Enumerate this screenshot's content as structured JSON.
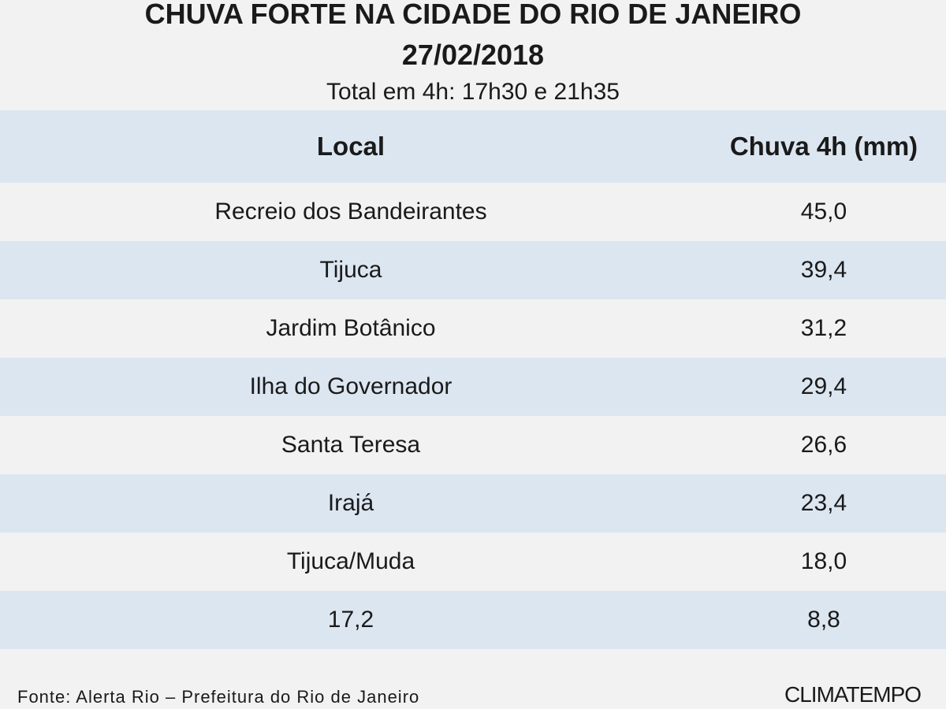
{
  "header": {
    "title_lines": [
      "CHUVA FORTE NA CIDADE DO RIO DE JANEIRO",
      "27/02/2018"
    ],
    "subtitle": "Total em 4h: 17h30 e 21h35"
  },
  "table": {
    "columns": [
      "Local",
      "Chuva 4h (mm)"
    ],
    "rows": [
      [
        "Recreio dos Bandeirantes",
        "45,0"
      ],
      [
        "Tijuca",
        "39,4"
      ],
      [
        "Jardim Botânico",
        "31,2"
      ],
      [
        "Ilha do Governador",
        "29,4"
      ],
      [
        "Santa Teresa",
        "26,6"
      ],
      [
        "Irajá",
        "23,4"
      ],
      [
        "Tijuca/Muda",
        "18,0"
      ],
      [
        "17,2",
        "8,8"
      ]
    ]
  },
  "footer": {
    "source": "Fonte: Alerta Rio – Prefeitura do Rio de Janeiro",
    "logo": "CLIMATEMPO"
  }
}
